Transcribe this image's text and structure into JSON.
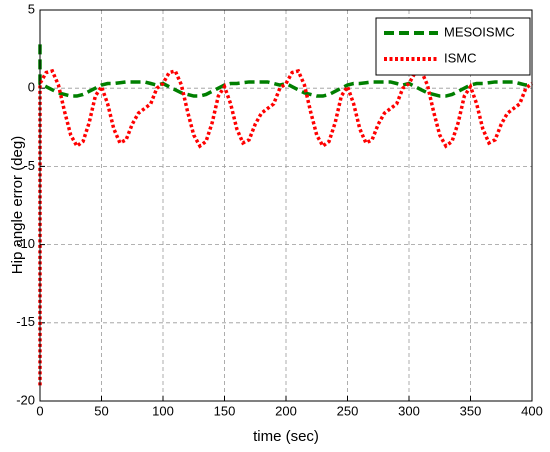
{
  "chart_data": {
    "type": "line",
    "xlabel": "time (sec)",
    "ylabel": "Hip angle error (deg)",
    "xlim": [
      0,
      400
    ],
    "xticks": [
      0,
      50,
      100,
      150,
      200,
      250,
      300,
      350,
      400
    ],
    "ylim": [
      -20,
      5
    ],
    "yticks": [
      5,
      0,
      -5,
      -10,
      -15,
      -20
    ],
    "grid": true,
    "legend": "upper right",
    "series": [
      {
        "name": "MESOISMC",
        "color": "#007f00",
        "style": "dashed",
        "x": [
          0,
          0,
          5,
          10,
          15,
          20,
          25,
          30,
          35,
          40,
          45,
          50,
          55,
          60,
          65,
          70,
          75,
          80,
          85,
          90,
          95,
          100,
          105,
          110,
          115,
          120,
          125,
          130,
          135,
          140,
          145,
          150,
          155,
          160,
          165,
          170,
          175,
          180,
          185,
          190,
          195,
          200,
          205,
          210,
          215,
          220,
          225,
          230,
          235,
          240,
          245,
          250,
          255,
          260,
          265,
          270,
          275,
          280,
          285,
          290,
          295,
          300,
          305,
          310,
          315,
          320,
          325,
          330,
          335,
          340,
          345,
          350,
          355,
          360,
          365,
          370,
          375,
          380,
          385,
          390,
          395,
          400
        ],
        "values": [
          2.8,
          0.3,
          0.1,
          -0.1,
          -0.3,
          -0.4,
          -0.5,
          -0.5,
          -0.4,
          -0.2,
          0.0,
          0.2,
          0.3,
          0.3,
          0.35,
          0.4,
          0.4,
          0.4,
          0.4,
          0.3,
          0.2,
          0.3,
          0.1,
          -0.1,
          -0.3,
          -0.4,
          -0.5,
          -0.5,
          -0.4,
          -0.2,
          0.0,
          0.2,
          0.3,
          0.3,
          0.35,
          0.4,
          0.4,
          0.4,
          0.4,
          0.3,
          0.2,
          0.3,
          0.1,
          -0.1,
          -0.3,
          -0.4,
          -0.5,
          -0.5,
          -0.4,
          -0.2,
          0.0,
          0.2,
          0.3,
          0.3,
          0.35,
          0.4,
          0.4,
          0.4,
          0.4,
          0.3,
          0.2,
          0.3,
          0.1,
          -0.1,
          -0.3,
          -0.4,
          -0.5,
          -0.5,
          -0.4,
          -0.2,
          0.0,
          0.2,
          0.3,
          0.3,
          0.35,
          0.4,
          0.4,
          0.4,
          0.4,
          0.3,
          0.2,
          0.3
        ]
      },
      {
        "name": "ISMC",
        "color": "#ff0000",
        "style": "dotted",
        "x": [
          0,
          0,
          5,
          10,
          15,
          20,
          25,
          30,
          35,
          40,
          45,
          50,
          55,
          60,
          65,
          70,
          75,
          80,
          85,
          90,
          95,
          100,
          105,
          110,
          115,
          120,
          125,
          130,
          135,
          140,
          145,
          150,
          155,
          160,
          165,
          170,
          175,
          180,
          185,
          190,
          195,
          200,
          205,
          210,
          215,
          220,
          225,
          230,
          235,
          240,
          245,
          250,
          255,
          260,
          265,
          270,
          275,
          280,
          285,
          290,
          295,
          300,
          305,
          310,
          315,
          320,
          325,
          330,
          335,
          340,
          345,
          350,
          355,
          360,
          365,
          370,
          375,
          380,
          385,
          390,
          395,
          400
        ],
        "values": [
          -19,
          0.3,
          1.0,
          1.1,
          0.2,
          -1.5,
          -3.0,
          -3.7,
          -3.4,
          -2.2,
          -0.5,
          0.1,
          -1.0,
          -2.6,
          -3.5,
          -3.3,
          -2.3,
          -1.6,
          -1.3,
          -1.0,
          0.0,
          0.3,
          1.0,
          1.1,
          0.2,
          -1.5,
          -3.0,
          -3.7,
          -3.4,
          -2.2,
          -0.5,
          0.1,
          -1.0,
          -2.6,
          -3.5,
          -3.3,
          -2.3,
          -1.6,
          -1.3,
          -1.0,
          0.0,
          0.3,
          1.0,
          1.1,
          0.2,
          -1.5,
          -3.0,
          -3.7,
          -3.4,
          -2.2,
          -0.5,
          0.1,
          -1.0,
          -2.6,
          -3.5,
          -3.3,
          -2.3,
          -1.6,
          -1.3,
          -1.0,
          0.0,
          0.3,
          1.0,
          1.1,
          0.2,
          -1.5,
          -3.0,
          -3.7,
          -3.4,
          -2.2,
          -0.5,
          0.1,
          -1.0,
          -2.6,
          -3.5,
          -3.3,
          -2.3,
          -1.6,
          -1.3,
          -1.0,
          0.0,
          0.3
        ]
      }
    ]
  }
}
